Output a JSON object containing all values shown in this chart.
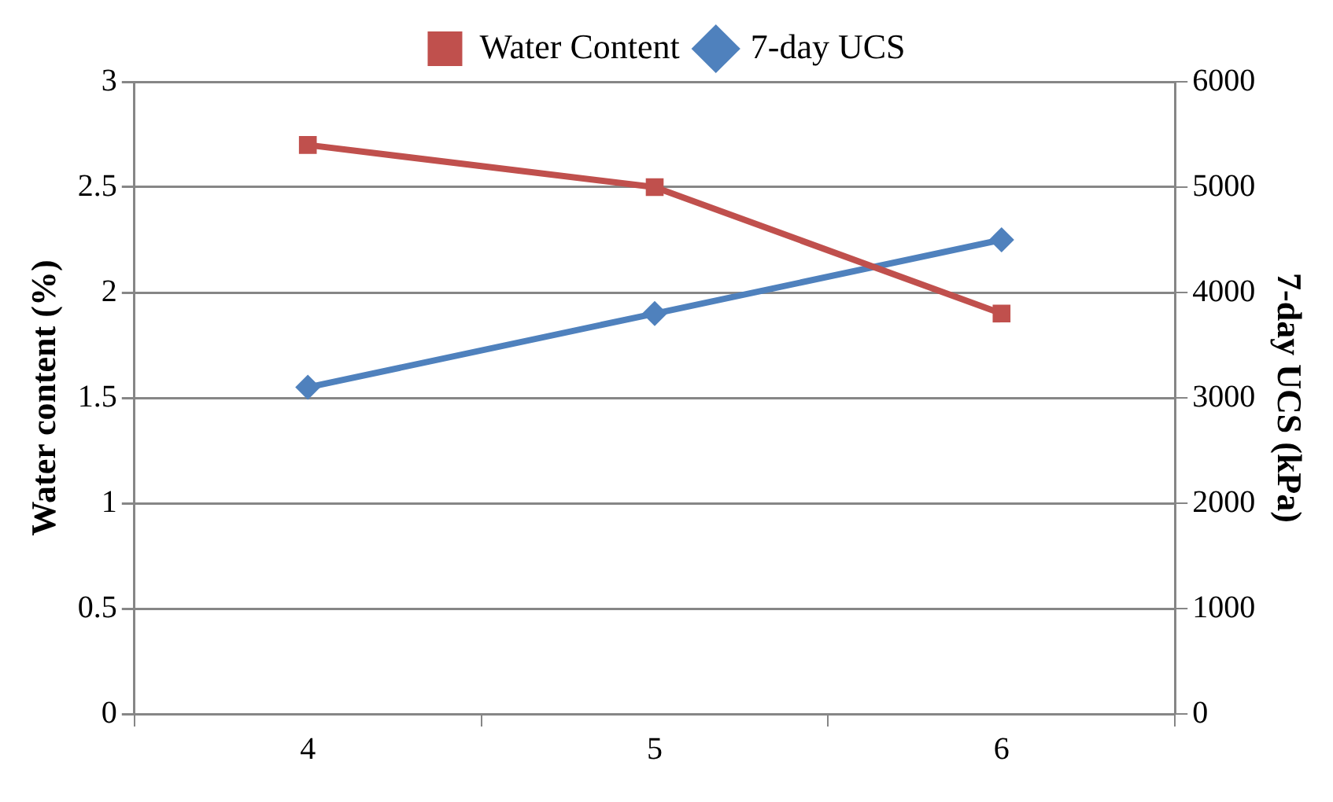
{
  "chart_data": {
    "type": "line",
    "ylabel": "Water content (%)",
    "y2label": "7-day UCS (kPa)",
    "categories": [
      "4",
      "5",
      "6"
    ],
    "series": [
      {
        "name": "Water Content",
        "color": "#c0504d",
        "values": [
          2.7,
          2.5,
          1.9
        ],
        "marker": "square"
      },
      {
        "name": "7-day UCS",
        "color": "#4f81bd",
        "values": [
          3100,
          3800,
          4500
        ],
        "axis": "y2",
        "marker": "diamond"
      }
    ],
    "ylim": [
      0,
      3
    ],
    "yticks": [
      0,
      0.5,
      1,
      1.5,
      2,
      2.5,
      3
    ],
    "y2lim": [
      0,
      6000
    ],
    "y2ticks": [
      0,
      1000,
      2000,
      3000,
      4000,
      5000,
      6000
    ],
    "grid": "y",
    "legend": "top",
    "line_style": "solid"
  }
}
